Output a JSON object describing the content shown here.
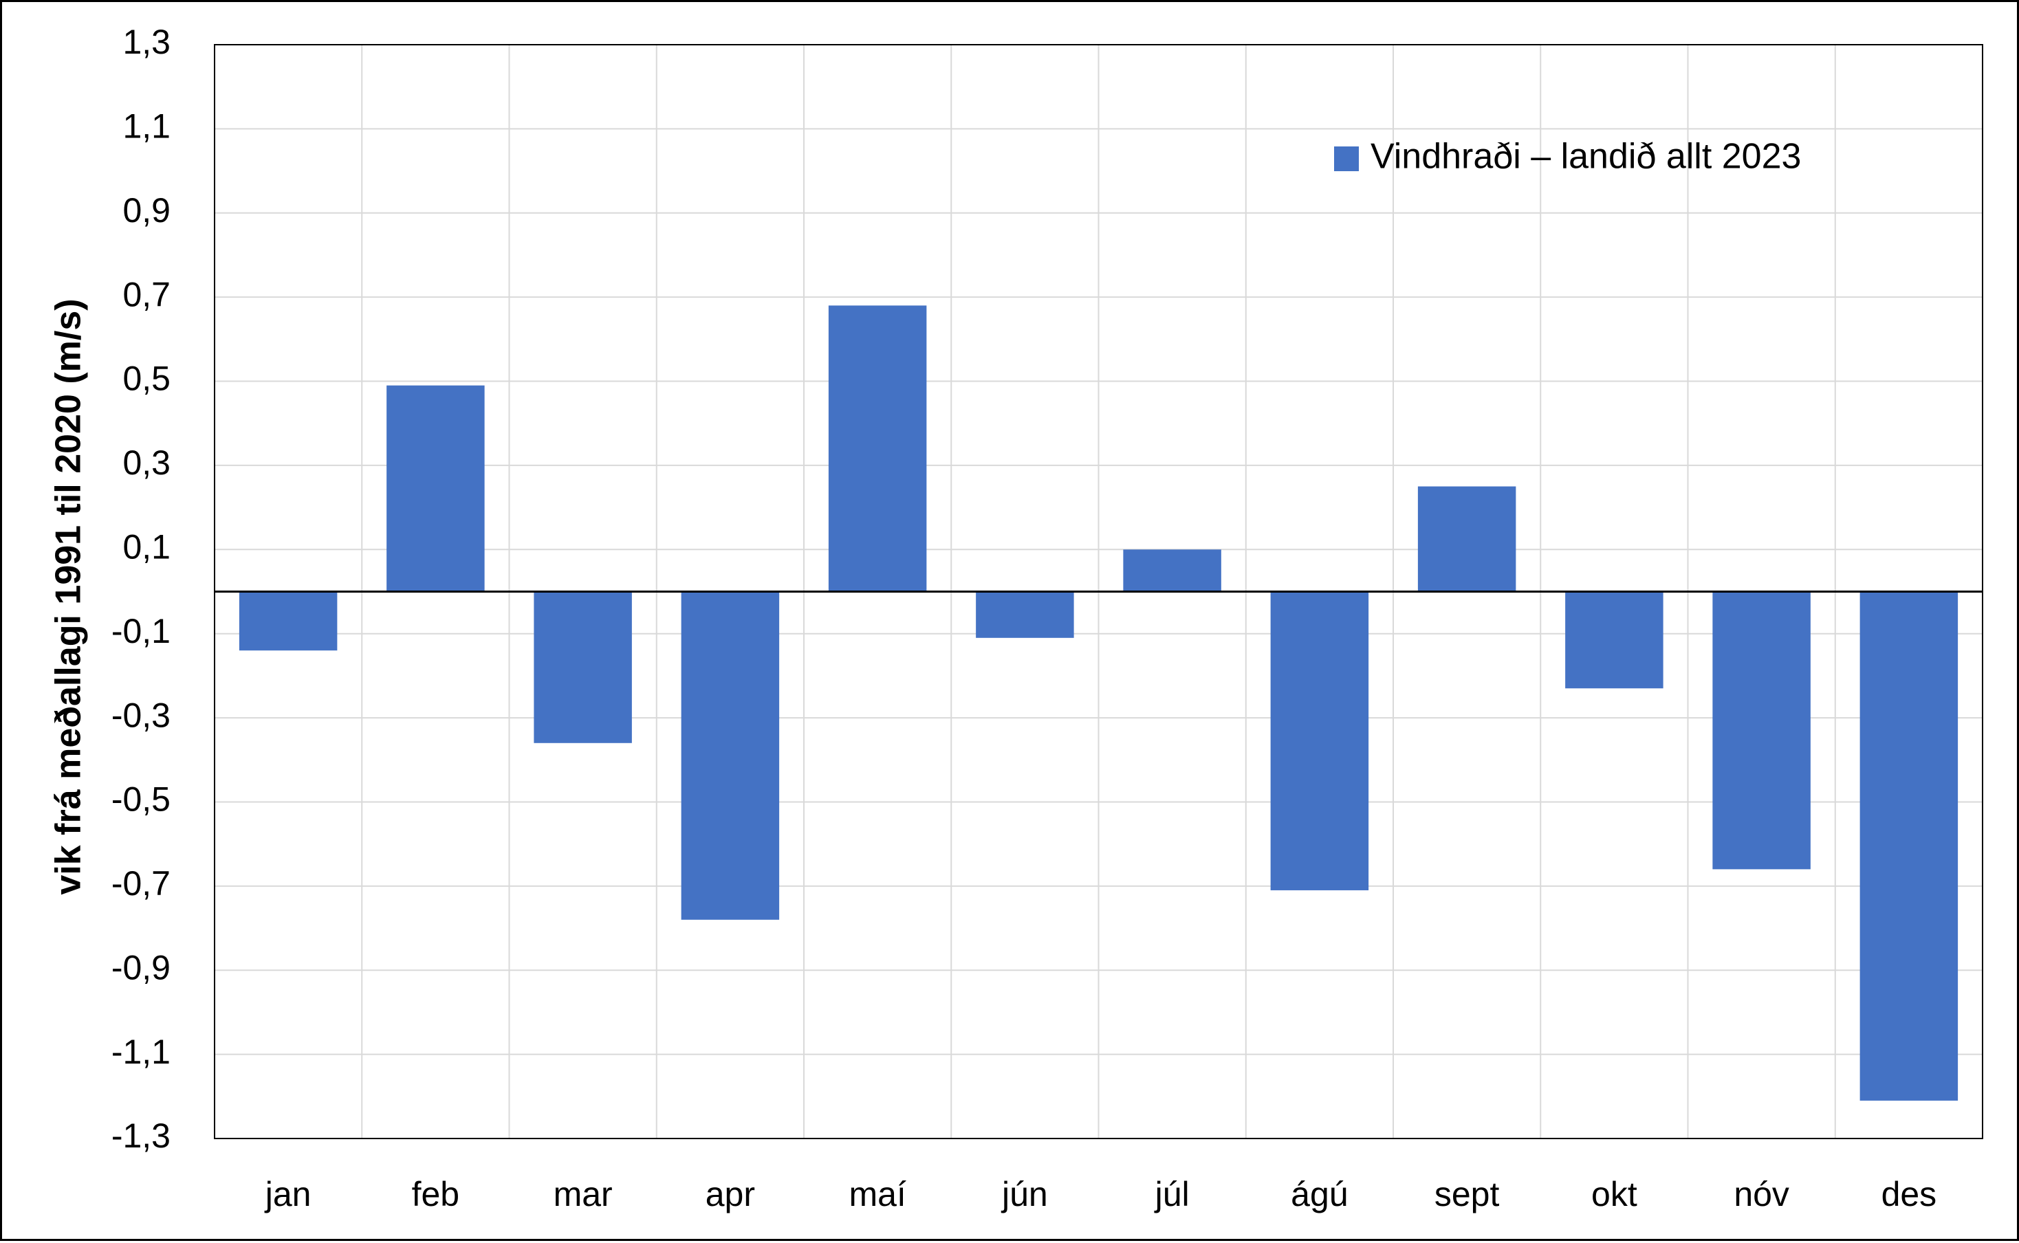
{
  "chart_data": {
    "type": "bar",
    "categories": [
      "jan",
      "feb",
      "mar",
      "apr",
      "maí",
      "jún",
      "júl",
      "ágú",
      "sept",
      "okt",
      "nóv",
      "des"
    ],
    "series": [
      {
        "name": "Vindhraði – landið allt 2023",
        "values": [
          -0.14,
          0.49,
          -0.36,
          -0.78,
          0.68,
          -0.11,
          0.1,
          -0.71,
          0.25,
          -0.23,
          -0.66,
          -1.21
        ],
        "color": "#4472C4"
      }
    ],
    "title": "",
    "xlabel": "",
    "ylabel": "vik frá meðallagi 1991 til 2020 (m/s)",
    "ylim": [
      -1.3,
      1.3
    ],
    "yticks": [
      1.3,
      1.1,
      0.9,
      0.7,
      0.5,
      0.3,
      0.1,
      -0.1,
      -0.3,
      -0.5,
      -0.7,
      -0.9,
      -1.1,
      -1.3
    ],
    "ytick_labels": [
      "1,3",
      "1,1",
      "0,9",
      "0,7",
      "0,5",
      "0,3",
      "0,1",
      "-0,1",
      "-0,3",
      "-0,5",
      "-0,7",
      "-0,9",
      "-1,1",
      "-1,3"
    ],
    "grid": true,
    "legend_position": "top-right",
    "colors": {
      "bar": "#4472C4",
      "grid": "#D9D9D9",
      "axis": "#000000"
    }
  }
}
